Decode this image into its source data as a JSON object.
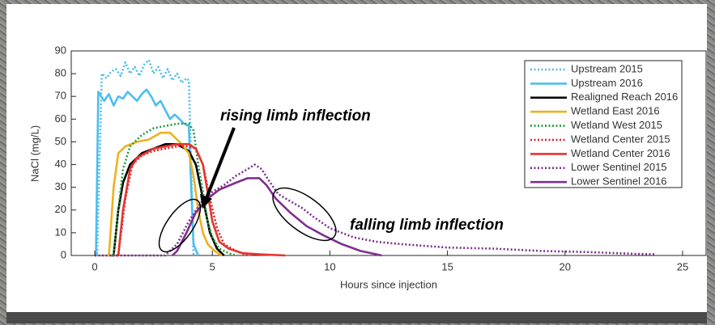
{
  "chart_data": {
    "type": "line",
    "xlabel": "Hours since injection",
    "ylabel": "NaCl (mg/L)",
    "xlim": [
      -1,
      26
    ],
    "xticks": [
      0,
      5,
      10,
      15,
      20,
      25
    ],
    "ylim": [
      0,
      90
    ],
    "yticks": [
      0,
      10,
      20,
      30,
      40,
      50,
      60,
      70,
      80,
      90
    ],
    "grid": false,
    "legend": "upper right",
    "annotations": [
      {
        "text": "rising limb inflection"
      },
      {
        "text": "falling limb inflection"
      }
    ],
    "series": [
      {
        "name": "Upstream 2015",
        "color": "#4DBEEE",
        "style": "dotted",
        "x": [
          0,
          0.1,
          0.3,
          0.5,
          0.7,
          0.9,
          1.1,
          1.3,
          1.5,
          1.7,
          1.9,
          2.1,
          2.3,
          2.5,
          2.7,
          2.9,
          3.1,
          3.3,
          3.5,
          3.7,
          3.9,
          4.0,
          4.1,
          4.2
        ],
        "values": [
          0,
          0,
          80,
          78,
          81,
          82,
          79,
          85,
          80,
          83,
          79,
          84,
          86,
          80,
          83,
          78,
          82,
          77,
          80,
          76,
          78,
          77,
          40,
          0
        ]
      },
      {
        "name": "Upstream 2016",
        "color": "#4DBEEE",
        "style": "solid",
        "x": [
          0,
          0.05,
          0.15,
          0.4,
          0.6,
          0.8,
          1.0,
          1.2,
          1.4,
          1.6,
          1.8,
          2.0,
          2.2,
          2.4,
          2.6,
          2.8,
          3.0,
          3.2,
          3.4,
          3.6,
          3.8,
          4.0,
          4.1,
          4.2,
          4.4
        ],
        "values": [
          0,
          0,
          72,
          68,
          71,
          66,
          70,
          69,
          72,
          70,
          68,
          71,
          73,
          70,
          66,
          68,
          64,
          60,
          62,
          60,
          58,
          57,
          30,
          5,
          0
        ]
      },
      {
        "name": "Realigned Reach 2016",
        "color": "#000000",
        "style": "solid",
        "x": [
          0.7,
          0.8,
          1.0,
          1.2,
          1.5,
          2.0,
          2.5,
          3.0,
          3.5,
          4.0,
          4.3,
          4.6,
          4.9,
          5.2,
          5.5
        ],
        "values": [
          0,
          0,
          20,
          32,
          40,
          45,
          47,
          49,
          49,
          46,
          40,
          25,
          10,
          3,
          0
        ]
      },
      {
        "name": "Wetland East 2016",
        "color": "#EDB120",
        "style": "solid",
        "x": [
          0.5,
          0.6,
          0.8,
          1.0,
          1.3,
          1.8,
          2.3,
          2.8,
          3.2,
          3.6,
          4.0,
          4.2,
          4.4,
          4.6,
          4.8,
          5.1,
          5.4
        ],
        "values": [
          0,
          0,
          30,
          45,
          48,
          50,
          51,
          54,
          54,
          50,
          45,
          35,
          20,
          10,
          5,
          2,
          0
        ]
      },
      {
        "name": "Wetland West 2015",
        "color": "#1E9E3A",
        "style": "dotted",
        "x": [
          0.7,
          0.8,
          1.0,
          1.2,
          1.5,
          2.0,
          2.5,
          3.0,
          3.5,
          4.0,
          4.2,
          4.4,
          4.6,
          4.8,
          5.0,
          5.3,
          5.7,
          6.0
        ],
        "values": [
          0,
          0,
          20,
          38,
          48,
          53,
          56,
          57,
          58,
          58,
          55,
          40,
          28,
          15,
          8,
          3,
          1,
          0
        ]
      },
      {
        "name": "Wetland Center 2015",
        "color": "#EC1C24",
        "style": "dotted",
        "x": [
          0.9,
          1.0,
          1.3,
          1.6,
          2.0,
          2.5,
          3.0,
          3.5,
          4.0,
          4.3,
          4.6,
          4.9,
          5.2,
          5.5,
          6.0,
          6.5
        ],
        "values": [
          0,
          0,
          25,
          40,
          44,
          46,
          47,
          48,
          48,
          47,
          40,
          25,
          12,
          5,
          2,
          0
        ]
      },
      {
        "name": "Wetland Center 2016",
        "color": "#E8332F",
        "style": "solid",
        "x": [
          0.9,
          1.0,
          1.2,
          1.5,
          1.8,
          2.5,
          3.0,
          3.5,
          4.0,
          4.3,
          4.6,
          4.8,
          5.0,
          5.3,
          5.7,
          6.3,
          7.0,
          8.1
        ],
        "values": [
          0,
          0,
          20,
          38,
          43,
          47,
          48,
          49,
          49,
          47,
          40,
          28,
          15,
          6,
          3,
          1,
          0.5,
          0
        ]
      },
      {
        "name": "Lower Sentinel 2015",
        "color": "#7E2F8E",
        "style": "dotted",
        "x": [
          0,
          3.0,
          3.5,
          4.0,
          4.5,
          5.0,
          5.5,
          6.0,
          6.5,
          6.8,
          7.1,
          7.4,
          7.8,
          8.3,
          8.8,
          9.3,
          10,
          11,
          12,
          13,
          15,
          17,
          19,
          21,
          23,
          23.8
        ],
        "values": [
          0,
          0,
          5,
          15,
          23,
          28,
          31,
          35,
          38,
          40,
          38,
          33,
          27,
          24,
          21,
          17,
          12,
          8,
          6,
          5,
          3.5,
          3,
          2,
          1.5,
          0.7,
          0.5
        ]
      },
      {
        "name": "Lower Sentinel 2016",
        "color": "#7E2F8E",
        "style": "solid",
        "x": [
          3.3,
          3.5,
          3.9,
          4.3,
          4.8,
          5.3,
          6.0,
          6.5,
          7.0,
          7.3,
          7.7,
          8.3,
          9.0,
          9.7,
          10.5,
          11.3,
          12.2
        ],
        "values": [
          0,
          2,
          10,
          19,
          25,
          29,
          32,
          34,
          34,
          31,
          25,
          19,
          13,
          9,
          5,
          2,
          0
        ]
      }
    ]
  }
}
